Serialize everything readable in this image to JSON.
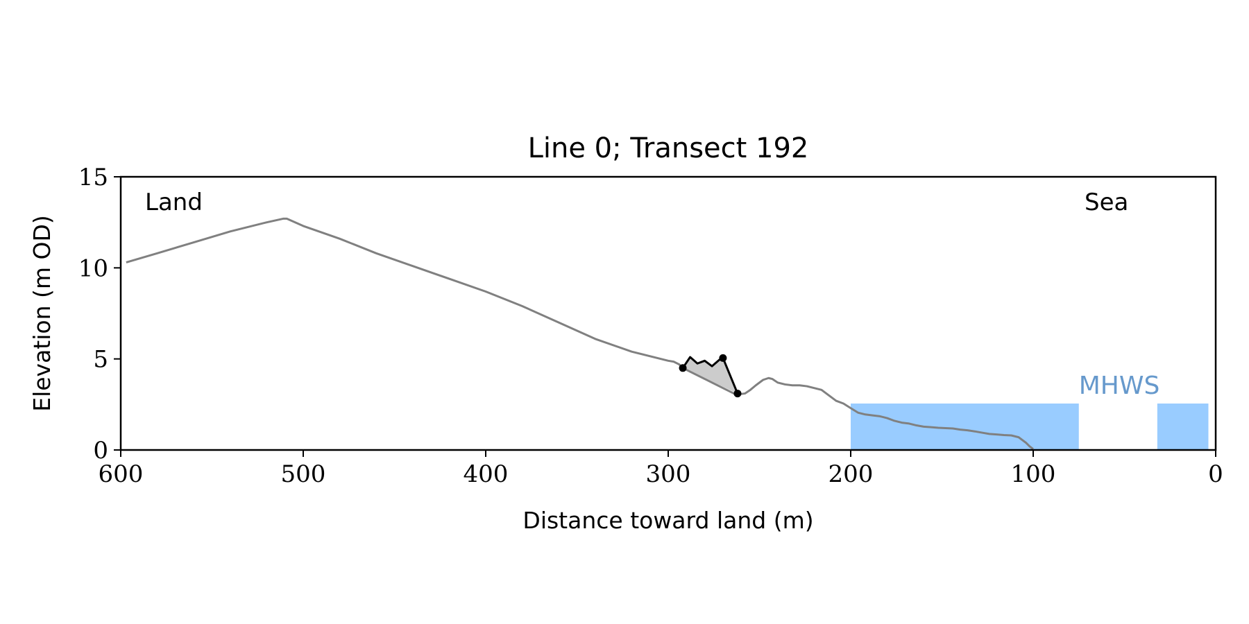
{
  "chart_data": {
    "type": "line",
    "title": "Line 0; Transect 192",
    "xlabel": "Distance toward land (m)",
    "ylabel": "Elevation (m OD)",
    "xlim": [
      600,
      0
    ],
    "ylim": [
      0,
      15
    ],
    "x_ticks": [
      600,
      500,
      400,
      300,
      200,
      100,
      0
    ],
    "y_ticks": [
      0,
      5,
      10,
      15
    ],
    "grid": false,
    "annotations": {
      "left": "Land",
      "right": "Sea",
      "mhws_label": "MHWS"
    },
    "colors": {
      "profile": "#808080",
      "feature": "#000000",
      "feature_fill": "#cccccc",
      "water": "#99ccff",
      "mhws_text": "#6699cc"
    },
    "mhws_elevation": 2.55,
    "water_segments": [
      [
        200,
        75
      ],
      [
        32,
        4
      ]
    ],
    "series": [
      {
        "role": "profile",
        "x": [
          597,
          580,
          560,
          540,
          520,
          511,
          509,
          500,
          480,
          460,
          440,
          420,
          400,
          380,
          360,
          340,
          320,
          300,
          297,
          294,
          292,
          288,
          284,
          280,
          276,
          272,
          268,
          264,
          262,
          258,
          255,
          252,
          248,
          245,
          243,
          240,
          236,
          232,
          228,
          224,
          220,
          216,
          212,
          208,
          204,
          200,
          196,
          192,
          188,
          184,
          180,
          176,
          172,
          168,
          164,
          160,
          156,
          152,
          148,
          144,
          140,
          136,
          132,
          128,
          124,
          120,
          116,
          112,
          108,
          104,
          102,
          100
        ],
        "y": [
          10.3,
          10.8,
          11.4,
          12.0,
          12.5,
          12.7,
          12.7,
          12.3,
          11.6,
          10.8,
          10.1,
          9.4,
          8.7,
          7.9,
          7.0,
          6.1,
          5.4,
          4.9,
          4.85,
          4.7,
          4.5,
          4.3,
          4.1,
          3.9,
          3.7,
          3.5,
          3.3,
          3.1,
          3.05,
          3.1,
          3.3,
          3.55,
          3.85,
          3.95,
          3.9,
          3.7,
          3.6,
          3.55,
          3.55,
          3.5,
          3.4,
          3.3,
          3.0,
          2.7,
          2.55,
          2.3,
          2.05,
          1.95,
          1.9,
          1.85,
          1.75,
          1.6,
          1.5,
          1.45,
          1.35,
          1.28,
          1.25,
          1.22,
          1.2,
          1.18,
          1.12,
          1.08,
          1.02,
          0.95,
          0.88,
          0.85,
          0.82,
          0.8,
          0.7,
          0.4,
          0.2,
          0.05
        ]
      },
      {
        "role": "feature",
        "x": [
          292,
          288,
          284,
          280,
          276,
          272,
          270,
          262
        ],
        "y": [
          4.5,
          5.1,
          4.75,
          4.9,
          4.6,
          4.95,
          5.05,
          3.1
        ]
      }
    ],
    "feature_endpoints": {
      "x": [
        292,
        270,
        262
      ],
      "y": [
        4.5,
        5.05,
        3.1
      ]
    }
  }
}
